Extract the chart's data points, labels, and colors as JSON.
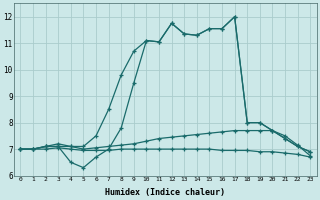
{
  "xlabel": "Humidex (Indice chaleur)",
  "xlim": [
    -0.5,
    23.5
  ],
  "ylim": [
    6,
    12.5
  ],
  "yticks": [
    6,
    7,
    8,
    9,
    10,
    11,
    12
  ],
  "xticks": [
    0,
    1,
    2,
    3,
    4,
    5,
    6,
    7,
    8,
    9,
    10,
    11,
    12,
    13,
    14,
    15,
    16,
    17,
    18,
    19,
    20,
    21,
    22,
    23
  ],
  "background_color": "#cce8e8",
  "grid_color": "#aacccc",
  "line_color": "#1a6b6b",
  "lines": [
    {
      "x": [
        0,
        1,
        2,
        3,
        4,
        5,
        6,
        7,
        8,
        9,
        10,
        11,
        12,
        13,
        14,
        15,
        16,
        17,
        18,
        19,
        20,
        21,
        22,
        23
      ],
      "y": [
        7.0,
        7.0,
        7.1,
        7.1,
        7.1,
        7.1,
        7.5,
        8.5,
        9.8,
        10.7,
        11.1,
        11.05,
        11.75,
        11.35,
        11.3,
        11.55,
        11.55,
        12.0,
        8.0,
        8.0,
        7.7,
        7.4,
        7.1,
        6.9
      ]
    },
    {
      "x": [
        0,
        1,
        2,
        3,
        4,
        5,
        6,
        7,
        8,
        9,
        10,
        11,
        12,
        13,
        14,
        15,
        16,
        17,
        18,
        19,
        20,
        21,
        22,
        23
      ],
      "y": [
        7.0,
        7.0,
        7.1,
        7.1,
        6.5,
        6.3,
        6.7,
        7.0,
        7.8,
        9.5,
        11.1,
        11.05,
        11.75,
        11.35,
        11.3,
        11.55,
        11.55,
        12.0,
        8.0,
        8.0,
        7.7,
        7.4,
        7.1,
        6.9
      ]
    },
    {
      "x": [
        0,
        1,
        2,
        3,
        4,
        5,
        6,
        7,
        8,
        9,
        10,
        11,
        12,
        13,
        14,
        15,
        16,
        17,
        18,
        19,
        20,
        21,
        22,
        23
      ],
      "y": [
        7.0,
        7.0,
        7.1,
        7.2,
        7.1,
        7.0,
        7.05,
        7.1,
        7.15,
        7.2,
        7.3,
        7.4,
        7.45,
        7.5,
        7.55,
        7.6,
        7.65,
        7.7,
        7.7,
        7.7,
        7.7,
        7.5,
        7.15,
        6.75
      ]
    },
    {
      "x": [
        0,
        1,
        2,
        3,
        4,
        5,
        6,
        7,
        8,
        9,
        10,
        11,
        12,
        13,
        14,
        15,
        16,
        17,
        18,
        19,
        20,
        21,
        22,
        23
      ],
      "y": [
        7.0,
        7.0,
        7.0,
        7.05,
        7.0,
        6.95,
        6.95,
        6.95,
        7.0,
        7.0,
        7.0,
        7.0,
        7.0,
        7.0,
        7.0,
        7.0,
        6.95,
        6.95,
        6.95,
        6.9,
        6.9,
        6.85,
        6.8,
        6.7
      ]
    }
  ]
}
